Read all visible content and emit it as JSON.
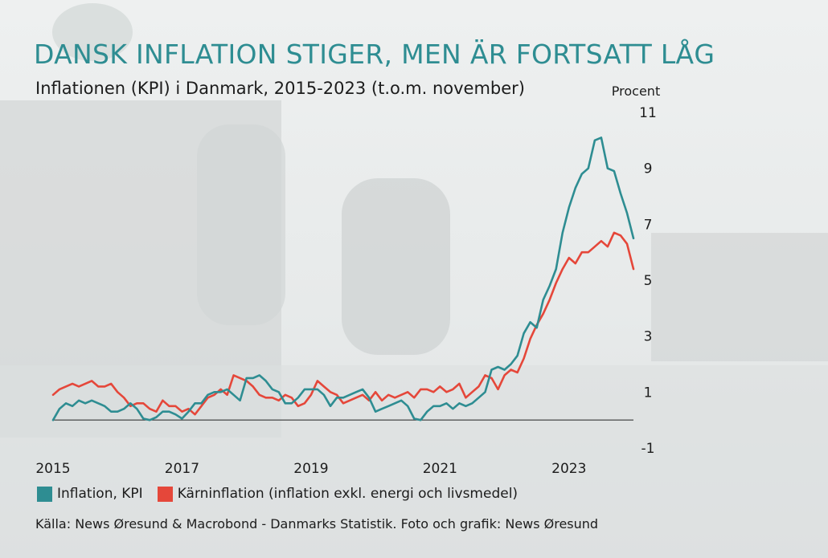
{
  "title": "DANSK INFLATION STIGER, MEN ÄR FORTSATT LÅG",
  "subtitle": "Inflationen (KPI) i Danmark, 2015-2023 (t.o.m. november)",
  "legend": {
    "items": [
      {
        "label": "Inflation, KPI",
        "color": "#2e8d92"
      },
      {
        "label": "Kärninflation (inflation exkl. energi och livsmedel)",
        "color": "#e5473a"
      }
    ]
  },
  "source": "Källa: News Øresund & Macrobond - Danmarks Statistik. Foto och grafik: News Øresund",
  "chart_data": {
    "type": "line",
    "title": "Inflationen (KPI) i Danmark, 2015-2023 (t.o.m. november)",
    "xlabel": "",
    "ylabel": "Procent",
    "ylim": [
      -1,
      11
    ],
    "xlim": [
      2015.0,
      2024.0
    ],
    "yticks": [
      11,
      9,
      7,
      5,
      3,
      1,
      -1
    ],
    "xticks": [
      {
        "value": 2015.0,
        "label": "2015"
      },
      {
        "value": 2017.0,
        "label": "2017"
      },
      {
        "value": 2019.0,
        "label": "2019"
      },
      {
        "value": 2021.0,
        "label": "2021"
      },
      {
        "value": 2023.0,
        "label": "2023"
      }
    ],
    "series": [
      {
        "name": "Inflation, KPI",
        "color": "#2e8d92",
        "points": [
          [
            2015.0,
            0.0
          ],
          [
            2015.1,
            0.4
          ],
          [
            2015.2,
            0.6
          ],
          [
            2015.3,
            0.5
          ],
          [
            2015.4,
            0.7
          ],
          [
            2015.5,
            0.6
          ],
          [
            2015.6,
            0.7
          ],
          [
            2015.7,
            0.6
          ],
          [
            2015.8,
            0.5
          ],
          [
            2015.9,
            0.3
          ],
          [
            2016.0,
            0.3
          ],
          [
            2016.1,
            0.4
          ],
          [
            2016.2,
            0.6
          ],
          [
            2016.3,
            0.4
          ],
          [
            2016.4,
            0.05
          ],
          [
            2016.5,
            0.0
          ],
          [
            2016.6,
            0.1
          ],
          [
            2016.7,
            0.3
          ],
          [
            2016.8,
            0.3
          ],
          [
            2016.9,
            0.2
          ],
          [
            2017.0,
            0.05
          ],
          [
            2017.1,
            0.3
          ],
          [
            2017.2,
            0.6
          ],
          [
            2017.3,
            0.6
          ],
          [
            2017.4,
            0.9
          ],
          [
            2017.5,
            1.0
          ],
          [
            2017.6,
            1.0
          ],
          [
            2017.7,
            1.1
          ],
          [
            2017.8,
            0.9
          ],
          [
            2017.9,
            0.7
          ],
          [
            2018.0,
            1.5
          ],
          [
            2018.1,
            1.5
          ],
          [
            2018.2,
            1.6
          ],
          [
            2018.3,
            1.4
          ],
          [
            2018.4,
            1.1
          ],
          [
            2018.5,
            1.0
          ],
          [
            2018.6,
            0.6
          ],
          [
            2018.7,
            0.6
          ],
          [
            2018.8,
            0.8
          ],
          [
            2018.9,
            1.1
          ],
          [
            2019.0,
            1.1
          ],
          [
            2019.1,
            1.1
          ],
          [
            2019.2,
            0.9
          ],
          [
            2019.3,
            0.5
          ],
          [
            2019.4,
            0.8
          ],
          [
            2019.5,
            0.8
          ],
          [
            2019.6,
            0.9
          ],
          [
            2019.7,
            1.0
          ],
          [
            2019.8,
            1.1
          ],
          [
            2019.9,
            0.8
          ],
          [
            2020.0,
            0.3
          ],
          [
            2020.1,
            0.4
          ],
          [
            2020.2,
            0.5
          ],
          [
            2020.3,
            0.6
          ],
          [
            2020.4,
            0.7
          ],
          [
            2020.5,
            0.5
          ],
          [
            2020.6,
            0.05
          ],
          [
            2020.7,
            0.0
          ],
          [
            2020.8,
            0.3
          ],
          [
            2020.9,
            0.5
          ],
          [
            2021.0,
            0.5
          ],
          [
            2021.1,
            0.6
          ],
          [
            2021.2,
            0.4
          ],
          [
            2021.3,
            0.6
          ],
          [
            2021.4,
            0.5
          ],
          [
            2021.5,
            0.6
          ],
          [
            2021.6,
            0.8
          ],
          [
            2021.7,
            1.0
          ],
          [
            2021.8,
            1.8
          ],
          [
            2021.9,
            1.9
          ],
          [
            2022.0,
            1.8
          ],
          [
            2022.1,
            2.0
          ],
          [
            2022.2,
            2.3
          ],
          [
            2022.3,
            3.1
          ],
          [
            2022.4,
            3.5
          ],
          [
            2022.5,
            3.3
          ],
          [
            2022.6,
            4.3
          ],
          [
            2022.7,
            4.8
          ],
          [
            2022.8,
            5.4
          ],
          [
            2022.9,
            6.7
          ],
          [
            2023.0,
            7.6
          ],
          [
            2023.1,
            8.3
          ],
          [
            2023.2,
            8.8
          ],
          [
            2023.3,
            9.0
          ],
          [
            2023.4,
            10.0
          ],
          [
            2023.5,
            10.1
          ],
          [
            2023.6,
            9.0
          ],
          [
            2023.7,
            8.9
          ],
          [
            2023.8,
            8.1
          ],
          [
            2023.9,
            7.4
          ],
          [
            2024.0,
            6.5
          ]
        ]
      },
      {
        "name": "Kärninflation (inflation exkl. energi och livsmedel)",
        "color": "#e5473a",
        "points": [
          [
            2015.0,
            0.9
          ],
          [
            2015.1,
            1.1
          ],
          [
            2015.2,
            1.2
          ],
          [
            2015.3,
            1.3
          ],
          [
            2015.4,
            1.2
          ],
          [
            2015.5,
            1.3
          ],
          [
            2015.6,
            1.4
          ],
          [
            2015.7,
            1.2
          ],
          [
            2015.8,
            1.2
          ],
          [
            2015.9,
            1.3
          ],
          [
            2016.0,
            1.0
          ],
          [
            2016.1,
            0.8
          ],
          [
            2016.2,
            0.5
          ],
          [
            2016.3,
            0.6
          ],
          [
            2016.4,
            0.6
          ],
          [
            2016.5,
            0.4
          ],
          [
            2016.6,
            0.3
          ],
          [
            2016.7,
            0.7
          ],
          [
            2016.8,
            0.5
          ],
          [
            2016.9,
            0.5
          ],
          [
            2017.0,
            0.3
          ],
          [
            2017.1,
            0.4
          ],
          [
            2017.2,
            0.2
          ],
          [
            2017.3,
            0.5
          ],
          [
            2017.4,
            0.8
          ],
          [
            2017.5,
            0.9
          ],
          [
            2017.6,
            1.1
          ],
          [
            2017.7,
            0.9
          ],
          [
            2017.8,
            1.6
          ],
          [
            2017.9,
            1.5
          ],
          [
            2018.0,
            1.4
          ],
          [
            2018.1,
            1.2
          ],
          [
            2018.2,
            0.9
          ],
          [
            2018.3,
            0.8
          ],
          [
            2018.4,
            0.8
          ],
          [
            2018.5,
            0.7
          ],
          [
            2018.6,
            0.9
          ],
          [
            2018.7,
            0.8
          ],
          [
            2018.8,
            0.5
          ],
          [
            2018.9,
            0.6
          ],
          [
            2019.0,
            0.9
          ],
          [
            2019.1,
            1.4
          ],
          [
            2019.2,
            1.2
          ],
          [
            2019.3,
            1.0
          ],
          [
            2019.4,
            0.9
          ],
          [
            2019.5,
            0.6
          ],
          [
            2019.6,
            0.7
          ],
          [
            2019.7,
            0.8
          ],
          [
            2019.8,
            0.9
          ],
          [
            2019.9,
            0.7
          ],
          [
            2020.0,
            1.0
          ],
          [
            2020.1,
            0.7
          ],
          [
            2020.2,
            0.9
          ],
          [
            2020.3,
            0.8
          ],
          [
            2020.4,
            0.9
          ],
          [
            2020.5,
            1.0
          ],
          [
            2020.6,
            0.8
          ],
          [
            2020.7,
            1.1
          ],
          [
            2020.8,
            1.1
          ],
          [
            2020.9,
            1.0
          ],
          [
            2021.0,
            1.2
          ],
          [
            2021.1,
            1.0
          ],
          [
            2021.2,
            1.1
          ],
          [
            2021.3,
            1.3
          ],
          [
            2021.4,
            0.8
          ],
          [
            2021.5,
            1.0
          ],
          [
            2021.6,
            1.2
          ],
          [
            2021.7,
            1.6
          ],
          [
            2021.8,
            1.5
          ],
          [
            2021.9,
            1.1
          ],
          [
            2022.0,
            1.6
          ],
          [
            2022.1,
            1.8
          ],
          [
            2022.2,
            1.7
          ],
          [
            2022.3,
            2.2
          ],
          [
            2022.4,
            2.9
          ],
          [
            2022.5,
            3.4
          ],
          [
            2022.6,
            3.8
          ],
          [
            2022.7,
            4.3
          ],
          [
            2022.8,
            4.9
          ],
          [
            2022.9,
            5.4
          ],
          [
            2023.0,
            5.8
          ],
          [
            2023.1,
            5.6
          ],
          [
            2023.2,
            6.0
          ],
          [
            2023.3,
            6.0
          ],
          [
            2023.4,
            6.2
          ],
          [
            2023.5,
            6.4
          ],
          [
            2023.6,
            6.2
          ],
          [
            2023.7,
            6.7
          ],
          [
            2023.8,
            6.6
          ],
          [
            2023.9,
            6.3
          ],
          [
            2024.0,
            5.4
          ]
        ]
      }
    ]
  }
}
